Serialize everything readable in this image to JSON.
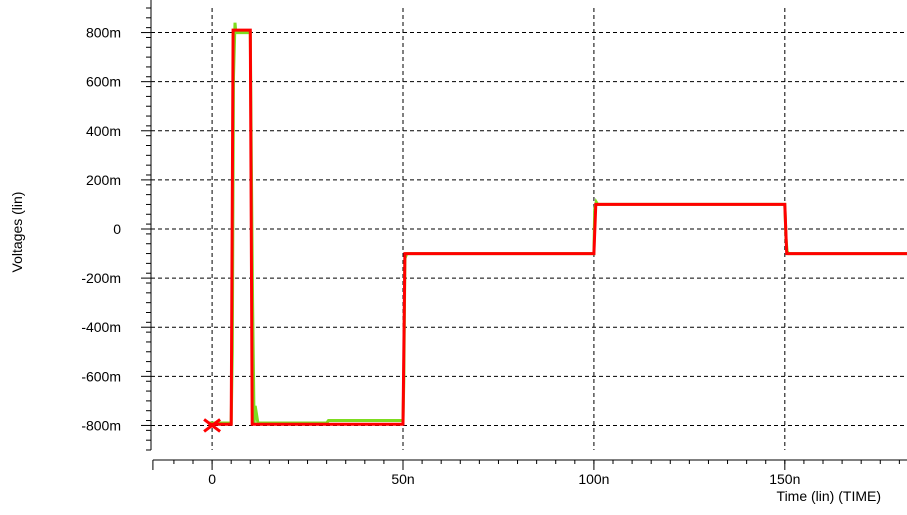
{
  "chart_data": {
    "type": "line",
    "xlabel": "Time (lin) (TIME)",
    "ylabel": "Voltages (lin)",
    "xlim": [
      -16,
      182
    ],
    "ylim": [
      -900,
      900
    ],
    "x_ticks": [
      {
        "value": 0,
        "label": "0"
      },
      {
        "value": 50,
        "label": "50n"
      },
      {
        "value": 100,
        "label": "100n"
      },
      {
        "value": 150,
        "label": "150n"
      }
    ],
    "y_ticks": [
      {
        "value": 800,
        "label": "800m"
      },
      {
        "value": 600,
        "label": "600m"
      },
      {
        "value": 400,
        "label": "400m"
      },
      {
        "value": 200,
        "label": "200m"
      },
      {
        "value": 0,
        "label": "0"
      },
      {
        "value": -200,
        "label": "-200m"
      },
      {
        "value": -400,
        "label": "-400m"
      },
      {
        "value": -600,
        "label": "-600m"
      },
      {
        "value": -800,
        "label": "-800m"
      }
    ],
    "grid": true,
    "marker": {
      "x": 0,
      "y": -800,
      "color": "#ff0000"
    },
    "series": [
      {
        "color": "#7ddc1f",
        "x": [
          -1,
          5,
          5.3,
          5.6,
          6,
          6.2,
          10,
          10.3,
          10.6,
          11,
          11.3,
          12,
          30,
          30.5,
          50,
          50.2,
          50.5,
          51,
          100,
          100.2,
          100.6,
          101,
          150,
          150.3,
          150.6,
          151,
          182
        ],
        "y": [
          -790,
          -790,
          -500,
          620,
          840,
          800,
          800,
          250,
          -300,
          -790,
          -720,
          -790,
          -790,
          -780,
          -780,
          -620,
          -120,
          -100,
          -100,
          80,
          110,
          100,
          100,
          -40,
          -90,
          -100,
          -100
        ]
      },
      {
        "color": "#ff0000",
        "x": [
          -1,
          4.5,
          5,
          5.5,
          10,
          10.5,
          11,
          50,
          50.5,
          51,
          100,
          100.5,
          101,
          150,
          150.5,
          151,
          182
        ],
        "y": [
          -795,
          -795,
          -795,
          810,
          810,
          -795,
          -795,
          -795,
          -100,
          -100,
          -100,
          100,
          100,
          100,
          -100,
          -100,
          -100
        ]
      }
    ]
  }
}
